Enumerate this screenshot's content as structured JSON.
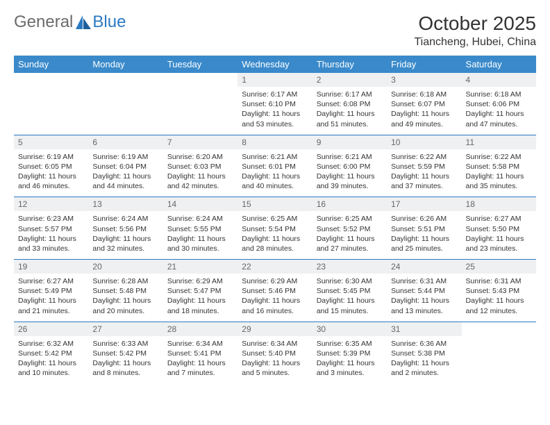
{
  "brand": {
    "part1": "General",
    "part2": "Blue"
  },
  "title": "October 2025",
  "location": "Tiancheng, Hubei, China",
  "colors": {
    "header_bg": "#3a8acb",
    "header_text": "#ffffff",
    "row_sep": "#2b79c2",
    "daynum_bg": "#eef0f2",
    "daynum_text": "#666666",
    "body_text": "#333333",
    "page_bg": "#ffffff"
  },
  "typography": {
    "title_fontsize": 28,
    "location_fontsize": 16,
    "weekday_fontsize": 13,
    "daynum_fontsize": 12,
    "cell_fontsize": 10.5
  },
  "weekdays": [
    "Sunday",
    "Monday",
    "Tuesday",
    "Wednesday",
    "Thursday",
    "Friday",
    "Saturday"
  ],
  "weeks": [
    [
      {
        "n": "",
        "l1": "",
        "l2": "",
        "l3": "",
        "l4": ""
      },
      {
        "n": "",
        "l1": "",
        "l2": "",
        "l3": "",
        "l4": ""
      },
      {
        "n": "",
        "l1": "",
        "l2": "",
        "l3": "",
        "l4": ""
      },
      {
        "n": "1",
        "l1": "Sunrise: 6:17 AM",
        "l2": "Sunset: 6:10 PM",
        "l3": "Daylight: 11 hours",
        "l4": "and 53 minutes."
      },
      {
        "n": "2",
        "l1": "Sunrise: 6:17 AM",
        "l2": "Sunset: 6:08 PM",
        "l3": "Daylight: 11 hours",
        "l4": "and 51 minutes."
      },
      {
        "n": "3",
        "l1": "Sunrise: 6:18 AM",
        "l2": "Sunset: 6:07 PM",
        "l3": "Daylight: 11 hours",
        "l4": "and 49 minutes."
      },
      {
        "n": "4",
        "l1": "Sunrise: 6:18 AM",
        "l2": "Sunset: 6:06 PM",
        "l3": "Daylight: 11 hours",
        "l4": "and 47 minutes."
      }
    ],
    [
      {
        "n": "5",
        "l1": "Sunrise: 6:19 AM",
        "l2": "Sunset: 6:05 PM",
        "l3": "Daylight: 11 hours",
        "l4": "and 46 minutes."
      },
      {
        "n": "6",
        "l1": "Sunrise: 6:19 AM",
        "l2": "Sunset: 6:04 PM",
        "l3": "Daylight: 11 hours",
        "l4": "and 44 minutes."
      },
      {
        "n": "7",
        "l1": "Sunrise: 6:20 AM",
        "l2": "Sunset: 6:03 PM",
        "l3": "Daylight: 11 hours",
        "l4": "and 42 minutes."
      },
      {
        "n": "8",
        "l1": "Sunrise: 6:21 AM",
        "l2": "Sunset: 6:01 PM",
        "l3": "Daylight: 11 hours",
        "l4": "and 40 minutes."
      },
      {
        "n": "9",
        "l1": "Sunrise: 6:21 AM",
        "l2": "Sunset: 6:00 PM",
        "l3": "Daylight: 11 hours",
        "l4": "and 39 minutes."
      },
      {
        "n": "10",
        "l1": "Sunrise: 6:22 AM",
        "l2": "Sunset: 5:59 PM",
        "l3": "Daylight: 11 hours",
        "l4": "and 37 minutes."
      },
      {
        "n": "11",
        "l1": "Sunrise: 6:22 AM",
        "l2": "Sunset: 5:58 PM",
        "l3": "Daylight: 11 hours",
        "l4": "and 35 minutes."
      }
    ],
    [
      {
        "n": "12",
        "l1": "Sunrise: 6:23 AM",
        "l2": "Sunset: 5:57 PM",
        "l3": "Daylight: 11 hours",
        "l4": "and 33 minutes."
      },
      {
        "n": "13",
        "l1": "Sunrise: 6:24 AM",
        "l2": "Sunset: 5:56 PM",
        "l3": "Daylight: 11 hours",
        "l4": "and 32 minutes."
      },
      {
        "n": "14",
        "l1": "Sunrise: 6:24 AM",
        "l2": "Sunset: 5:55 PM",
        "l3": "Daylight: 11 hours",
        "l4": "and 30 minutes."
      },
      {
        "n": "15",
        "l1": "Sunrise: 6:25 AM",
        "l2": "Sunset: 5:54 PM",
        "l3": "Daylight: 11 hours",
        "l4": "and 28 minutes."
      },
      {
        "n": "16",
        "l1": "Sunrise: 6:25 AM",
        "l2": "Sunset: 5:52 PM",
        "l3": "Daylight: 11 hours",
        "l4": "and 27 minutes."
      },
      {
        "n": "17",
        "l1": "Sunrise: 6:26 AM",
        "l2": "Sunset: 5:51 PM",
        "l3": "Daylight: 11 hours",
        "l4": "and 25 minutes."
      },
      {
        "n": "18",
        "l1": "Sunrise: 6:27 AM",
        "l2": "Sunset: 5:50 PM",
        "l3": "Daylight: 11 hours",
        "l4": "and 23 minutes."
      }
    ],
    [
      {
        "n": "19",
        "l1": "Sunrise: 6:27 AM",
        "l2": "Sunset: 5:49 PM",
        "l3": "Daylight: 11 hours",
        "l4": "and 21 minutes."
      },
      {
        "n": "20",
        "l1": "Sunrise: 6:28 AM",
        "l2": "Sunset: 5:48 PM",
        "l3": "Daylight: 11 hours",
        "l4": "and 20 minutes."
      },
      {
        "n": "21",
        "l1": "Sunrise: 6:29 AM",
        "l2": "Sunset: 5:47 PM",
        "l3": "Daylight: 11 hours",
        "l4": "and 18 minutes."
      },
      {
        "n": "22",
        "l1": "Sunrise: 6:29 AM",
        "l2": "Sunset: 5:46 PM",
        "l3": "Daylight: 11 hours",
        "l4": "and 16 minutes."
      },
      {
        "n": "23",
        "l1": "Sunrise: 6:30 AM",
        "l2": "Sunset: 5:45 PM",
        "l3": "Daylight: 11 hours",
        "l4": "and 15 minutes."
      },
      {
        "n": "24",
        "l1": "Sunrise: 6:31 AM",
        "l2": "Sunset: 5:44 PM",
        "l3": "Daylight: 11 hours",
        "l4": "and 13 minutes."
      },
      {
        "n": "25",
        "l1": "Sunrise: 6:31 AM",
        "l2": "Sunset: 5:43 PM",
        "l3": "Daylight: 11 hours",
        "l4": "and 12 minutes."
      }
    ],
    [
      {
        "n": "26",
        "l1": "Sunrise: 6:32 AM",
        "l2": "Sunset: 5:42 PM",
        "l3": "Daylight: 11 hours",
        "l4": "and 10 minutes."
      },
      {
        "n": "27",
        "l1": "Sunrise: 6:33 AM",
        "l2": "Sunset: 5:42 PM",
        "l3": "Daylight: 11 hours",
        "l4": "and 8 minutes."
      },
      {
        "n": "28",
        "l1": "Sunrise: 6:34 AM",
        "l2": "Sunset: 5:41 PM",
        "l3": "Daylight: 11 hours",
        "l4": "and 7 minutes."
      },
      {
        "n": "29",
        "l1": "Sunrise: 6:34 AM",
        "l2": "Sunset: 5:40 PM",
        "l3": "Daylight: 11 hours",
        "l4": "and 5 minutes."
      },
      {
        "n": "30",
        "l1": "Sunrise: 6:35 AM",
        "l2": "Sunset: 5:39 PM",
        "l3": "Daylight: 11 hours",
        "l4": "and 3 minutes."
      },
      {
        "n": "31",
        "l1": "Sunrise: 6:36 AM",
        "l2": "Sunset: 5:38 PM",
        "l3": "Daylight: 11 hours",
        "l4": "and 2 minutes."
      },
      {
        "n": "",
        "l1": "",
        "l2": "",
        "l3": "",
        "l4": ""
      }
    ]
  ]
}
